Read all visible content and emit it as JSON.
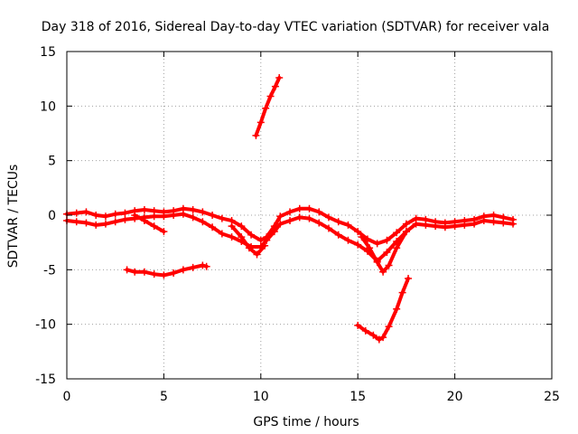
{
  "chart_data": {
    "type": "scatter",
    "title": "Day 318 of 2016, Sidereal Day-to-day VTEC variation (SDTVAR) for receiver vala",
    "xlabel": "GPS time / hours",
    "ylabel": "SDTVAR / TECUs",
    "xlim": [
      0,
      25
    ],
    "ylim": [
      -15,
      15
    ],
    "xticks": [
      0,
      5,
      10,
      15,
      20,
      25
    ],
    "yticks": [
      -15,
      -10,
      -5,
      0,
      5,
      10,
      15
    ],
    "xtick_labels": [
      "0",
      "5",
      "10",
      "15",
      "20",
      "25"
    ],
    "ytick_labels": [
      "-15",
      "-10",
      "-5",
      "0",
      "5",
      "10",
      "15"
    ],
    "grid": true,
    "legend": "none",
    "color": "#ff0000",
    "marker": "+",
    "series": [
      {
        "name": "band-main-upper",
        "x": [
          0,
          0.5,
          1,
          1.5,
          2,
          2.5,
          3,
          3.5,
          4,
          4.5,
          5,
          5.5,
          6,
          6.5,
          7,
          7.5,
          8,
          8.5,
          9,
          9.5,
          10,
          10.3,
          10.7,
          11,
          11.5,
          12,
          12.5,
          13,
          13.5,
          14,
          14.5,
          15,
          15.5,
          16,
          16.5,
          17,
          17.5,
          18,
          18.5,
          19,
          19.5,
          20,
          20.5,
          21,
          21.5,
          22,
          22.5,
          23
        ],
        "y": [
          0.1,
          0.2,
          0.3,
          0.0,
          -0.1,
          0.1,
          0.2,
          0.4,
          0.5,
          0.4,
          0.3,
          0.4,
          0.6,
          0.5,
          0.3,
          0.0,
          -0.3,
          -0.5,
          -1.0,
          -1.8,
          -2.3,
          -2.0,
          -1.0,
          -0.1,
          0.3,
          0.6,
          0.6,
          0.3,
          -0.2,
          -0.6,
          -0.9,
          -1.5,
          -2.2,
          -2.6,
          -2.3,
          -1.6,
          -0.8,
          -0.3,
          -0.4,
          -0.6,
          -0.7,
          -0.6,
          -0.5,
          -0.4,
          -0.1,
          0.0,
          -0.2,
          -0.4
        ]
      },
      {
        "name": "band-main-lower",
        "x": [
          0,
          0.5,
          1,
          1.5,
          2,
          2.5,
          3,
          3.5,
          4,
          4.5,
          5,
          5.5,
          6,
          6.5,
          7,
          7.5,
          8,
          8.5,
          9,
          9.5,
          10,
          10.3,
          10.7,
          11,
          11.5,
          12,
          12.5,
          13,
          13.5,
          14,
          14.5,
          15,
          15.5,
          16,
          16.5,
          17,
          17.5,
          18,
          18.5,
          19,
          19.5,
          20,
          20.5,
          21,
          21.5,
          22,
          22.5,
          23
        ],
        "y": [
          -0.5,
          -0.6,
          -0.7,
          -0.9,
          -0.8,
          -0.6,
          -0.4,
          -0.3,
          -0.2,
          -0.1,
          -0.1,
          0.0,
          0.1,
          -0.2,
          -0.6,
          -1.1,
          -1.7,
          -2.0,
          -2.4,
          -2.9,
          -2.9,
          -2.3,
          -1.5,
          -0.8,
          -0.5,
          -0.2,
          -0.3,
          -0.7,
          -1.2,
          -1.8,
          -2.3,
          -2.7,
          -3.3,
          -4.2,
          -3.4,
          -2.4,
          -1.5,
          -0.8,
          -0.9,
          -1.0,
          -1.1,
          -1.0,
          -0.9,
          -0.8,
          -0.5,
          -0.6,
          -0.7,
          -0.8
        ]
      },
      {
        "name": "branch-descending",
        "x": [
          3.5,
          4,
          4.5,
          5
        ],
        "y": [
          0.0,
          -0.5,
          -1.0,
          -1.5
        ]
      },
      {
        "name": "branch-9to10",
        "x": [
          8.5,
          9,
          9.4,
          9.8,
          10.2
        ],
        "y": [
          -1.0,
          -2.0,
          -3.0,
          -3.6,
          -2.8
        ]
      },
      {
        "name": "branch-16dip",
        "x": [
          15.2,
          15.6,
          16,
          16.3,
          16.6,
          17,
          17.5
        ],
        "y": [
          -2.0,
          -3.0,
          -4.3,
          -5.2,
          -4.6,
          -3.0,
          -1.5
        ]
      },
      {
        "name": "segment-afternoon-low",
        "x": [
          3.1,
          3.5,
          4,
          4.5,
          5,
          5.5,
          6,
          6.5,
          7,
          7.2
        ],
        "y": [
          -5.0,
          -5.2,
          -5.2,
          -5.4,
          -5.5,
          -5.3,
          -5.0,
          -4.8,
          -4.6,
          -4.7
        ]
      },
      {
        "name": "segment-rising-spike",
        "x": [
          9.75,
          10,
          10.25,
          10.5,
          10.75,
          10.95
        ],
        "y": [
          7.3,
          8.5,
          9.8,
          10.9,
          11.8,
          12.6
        ]
      },
      {
        "name": "segment-low-dip",
        "x": [
          15.0,
          15.4,
          15.8,
          16.1,
          16.3,
          16.6,
          17,
          17.3,
          17.6
        ],
        "y": [
          -10.1,
          -10.6,
          -11.0,
          -11.4,
          -11.2,
          -10.2,
          -8.6,
          -7.1,
          -5.8
        ]
      }
    ]
  }
}
